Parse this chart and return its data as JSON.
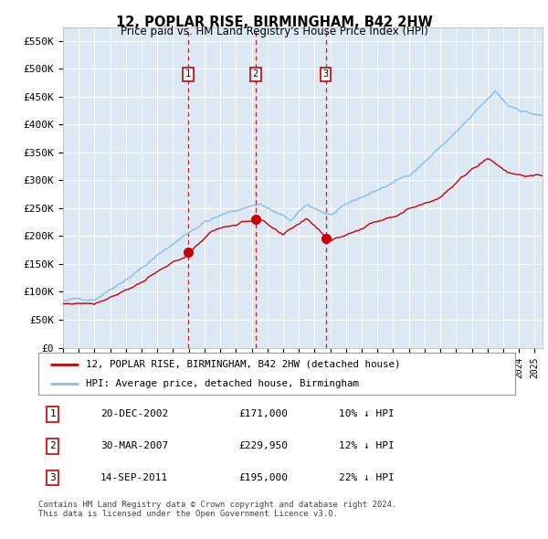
{
  "title": "12, POPLAR RISE, BIRMINGHAM, B42 2HW",
  "subtitle": "Price paid vs. HM Land Registry's House Price Index (HPI)",
  "plot_bg_color": "#dce9f5",
  "hpi_color": "#85bcee",
  "price_color": "#cc0000",
  "vline_color": "#cc0000",
  "ylim": [
    0,
    575000
  ],
  "yticks": [
    0,
    50000,
    100000,
    150000,
    200000,
    250000,
    300000,
    350000,
    400000,
    450000,
    500000,
    550000
  ],
  "ytick_labels": [
    "£0",
    "£50K",
    "£100K",
    "£150K",
    "£200K",
    "£250K",
    "£300K",
    "£350K",
    "£400K",
    "£450K",
    "£500K",
    "£550K"
  ],
  "transactions": [
    {
      "label": "1",
      "date_str": "20-DEC-2002",
      "price": 171000,
      "price_str": "£171,000",
      "pct": "10%",
      "dir": "↓",
      "x_year": 2002.97
    },
    {
      "label": "2",
      "date_str": "30-MAR-2007",
      "price": 229950,
      "price_str": "£229,950",
      "pct": "12%",
      "dir": "↓",
      "x_year": 2007.25
    },
    {
      "label": "3",
      "date_str": "14-SEP-2011",
      "price": 195000,
      "price_str": "£195,000",
      "pct": "22%",
      "dir": "↓",
      "x_year": 2011.71
    }
  ],
  "legend_line1": "12, POPLAR RISE, BIRMINGHAM, B42 2HW (detached house)",
  "legend_line2": "HPI: Average price, detached house, Birmingham",
  "footer": "Contains HM Land Registry data © Crown copyright and database right 2024.\nThis data is licensed under the Open Government Licence v3.0.",
  "xlim_start": 1995.0,
  "xlim_end": 2025.5
}
